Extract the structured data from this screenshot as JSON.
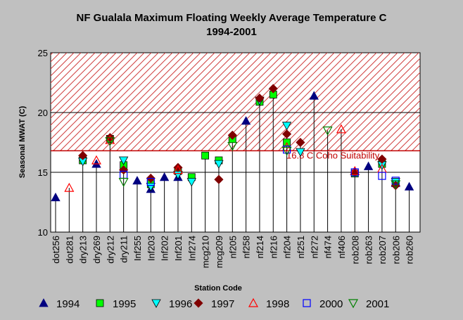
{
  "chart_data": {
    "type": "scatter",
    "title": "NF Gualala Maximum Floating Weekly Average Temperature C",
    "subtitle": "1994-2001",
    "xlabel": "Station Code",
    "ylabel": "Seasonal MWAT  (C)",
    "ylim": [
      10,
      25
    ],
    "yticks": [
      10,
      15,
      20,
      25
    ],
    "grid": "horizontal",
    "legend_position": "bottom",
    "threshold": {
      "value": 16.8,
      "label": "16.8 C Coho Suitability",
      "color": "#c00000"
    },
    "categories": [
      "dot256",
      "dot281",
      "dry213",
      "dry269",
      "dry212",
      "dry211",
      "Inf255",
      "Inf203",
      "Inf202",
      "Inf201",
      "Inf274",
      "mcg210",
      "mcg209",
      "nf205",
      "nf258",
      "nf214",
      "nf216",
      "nf204",
      "nf251",
      "nf272",
      "nf474",
      "nf406",
      "rob208",
      "rob263",
      "rob207",
      "rob206",
      "rob260"
    ],
    "series": [
      {
        "name": "1994",
        "marker": "triangle-up",
        "color": "#000080",
        "filled": true,
        "points": [
          [
            "dot256",
            12.9
          ],
          [
            "dry269",
            15.7
          ],
          [
            "Inf255",
            14.3
          ],
          [
            "Inf203",
            13.6
          ],
          [
            "Inf202",
            14.6
          ],
          [
            "Inf201",
            14.6
          ],
          [
            "nf258",
            19.3
          ],
          [
            "nf272",
            21.4
          ],
          [
            "rob263",
            15.5
          ],
          [
            "rob206",
            14.1
          ],
          [
            "rob260",
            13.8
          ]
        ]
      },
      {
        "name": "1995",
        "marker": "square",
        "color": "#00ff00",
        "filled": true,
        "points": [
          [
            "dry213",
            16.0
          ],
          [
            "dry212",
            17.8
          ],
          [
            "dry211",
            15.6
          ],
          [
            "Inf203",
            14.0
          ],
          [
            "Inf201",
            15.1
          ],
          [
            "Inf274",
            14.6
          ],
          [
            "mcg210",
            16.4
          ],
          [
            "mcg209",
            16.0
          ],
          [
            "nf205",
            17.8
          ],
          [
            "nf214",
            20.9
          ],
          [
            "nf216",
            21.5
          ],
          [
            "nf204",
            17.5
          ],
          [
            "rob208",
            14.9
          ],
          [
            "rob207",
            15.7
          ],
          [
            "rob206",
            14.2
          ]
        ]
      },
      {
        "name": "1996",
        "marker": "triangle-down",
        "color": "#00ffff",
        "filled": true,
        "points": [
          [
            "dry213",
            15.9
          ],
          [
            "dry211",
            16.0
          ],
          [
            "Inf203",
            13.8
          ],
          [
            "Inf201",
            14.8
          ],
          [
            "Inf274",
            14.2
          ],
          [
            "mcg209",
            15.7
          ],
          [
            "nf214",
            21.0
          ],
          [
            "nf204",
            18.9
          ],
          [
            "nf251",
            16.7
          ],
          [
            "rob207",
            15.6
          ],
          [
            "rob206",
            14.2
          ]
        ]
      },
      {
        "name": "1997",
        "marker": "diamond",
        "color": "#800000",
        "filled": true,
        "points": [
          [
            "dry213",
            16.4
          ],
          [
            "dry212",
            17.9
          ],
          [
            "dry211",
            15.2
          ],
          [
            "Inf203",
            14.5
          ],
          [
            "Inf201",
            15.4
          ],
          [
            "mcg209",
            14.4
          ],
          [
            "nf205",
            18.1
          ],
          [
            "nf214",
            21.2
          ],
          [
            "nf216",
            22.0
          ],
          [
            "nf204",
            18.2
          ],
          [
            "nf251",
            17.5
          ],
          [
            "rob208",
            15.0
          ],
          [
            "rob207",
            16.1
          ],
          [
            "rob206",
            13.9
          ]
        ]
      },
      {
        "name": "1998",
        "marker": "triangle-up",
        "color": "#ff0000",
        "filled": false,
        "points": [
          [
            "dot281",
            13.7
          ],
          [
            "dry269",
            16.0
          ],
          [
            "dry212",
            17.7
          ],
          [
            "Inf201",
            15.2
          ],
          [
            "nf204",
            17.1
          ],
          [
            "nf406",
            18.6
          ],
          [
            "rob208",
            15.1
          ],
          [
            "rob207",
            15.3
          ]
        ]
      },
      {
        "name": "2000",
        "marker": "square",
        "color": "#0000ff",
        "filled": false,
        "points": [
          [
            "dry211",
            14.8
          ],
          [
            "Inf203",
            14.2
          ],
          [
            "nf204",
            16.9
          ],
          [
            "rob208",
            15.0
          ],
          [
            "rob207",
            14.7
          ],
          [
            "rob206",
            14.3
          ]
        ]
      },
      {
        "name": "2001",
        "marker": "triangle-down",
        "color": "#008000",
        "filled": false,
        "points": [
          [
            "dry212",
            17.6
          ],
          [
            "dry211",
            14.2
          ],
          [
            "nf205",
            17.2
          ],
          [
            "nf204",
            16.8
          ],
          [
            "nf474",
            18.5
          ],
          [
            "rob206",
            14.0
          ]
        ]
      }
    ]
  }
}
